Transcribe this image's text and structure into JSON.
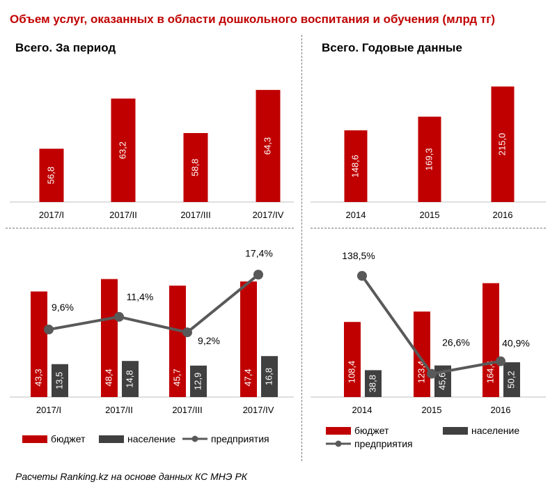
{
  "title": "Объем услуг, оказанных в области дошкольного воспитания и обучения (млрд тг)",
  "source": "Расчеты Ranking.kz на основе данных КС МНЭ РК",
  "colors": {
    "budget": "#c00000",
    "population": "#404040",
    "enterprises": "#595959",
    "title": "#c00000"
  },
  "legend": {
    "budget": "бюджет",
    "population": "население",
    "enterprises": "предприятия"
  },
  "chart_data": [
    {
      "id": "period-total",
      "type": "bar",
      "title": "Всего. За период",
      "categories": [
        "2017/I",
        "2017/II",
        "2017/III",
        "2017/IV"
      ],
      "values": [
        56.8,
        63.2,
        58.8,
        64.3
      ],
      "value_labels": [
        "56,8",
        "63,2",
        "58,8",
        "64,3"
      ],
      "ylim": [
        50,
        66
      ]
    },
    {
      "id": "annual-total",
      "type": "bar",
      "title": "Всего. Годовые данные",
      "categories": [
        "2014",
        "2015",
        "2016"
      ],
      "values": [
        148.6,
        169.3,
        215.0
      ],
      "value_labels": [
        "148,6",
        "169,3",
        "215,0"
      ],
      "ylim": [
        40,
        230
      ]
    },
    {
      "id": "period-breakdown",
      "type": "bar",
      "title": "",
      "categories": [
        "2017/I",
        "2017/II",
        "2017/III",
        "2017/IV"
      ],
      "series": [
        {
          "name": "бюджет",
          "kind": "bar",
          "values": [
            43.3,
            48.4,
            45.7,
            47.4
          ],
          "labels": [
            "43,3",
            "48,4",
            "45,7",
            "47,4"
          ]
        },
        {
          "name": "население",
          "kind": "bar",
          "values": [
            13.5,
            14.8,
            12.9,
            16.8
          ],
          "labels": [
            "13,5",
            "14,8",
            "12,9",
            "16,8"
          ]
        },
        {
          "name": "предприятия",
          "kind": "line",
          "unit": "%",
          "values": [
            9.6,
            11.4,
            9.2,
            17.4
          ],
          "labels": [
            "9,6%",
            "11,4%",
            "9,2%",
            "17,4%"
          ]
        }
      ],
      "bar_ylim": [
        0,
        52
      ],
      "line_ylim": [
        0,
        20
      ]
    },
    {
      "id": "annual-breakdown",
      "type": "bar",
      "title": "",
      "categories": [
        "2014",
        "2015",
        "2016"
      ],
      "series": [
        {
          "name": "бюджет",
          "kind": "bar",
          "values": [
            108.4,
            123.4,
            164.4
          ],
          "labels": [
            "108,4",
            "123,4",
            "164,4"
          ]
        },
        {
          "name": "население",
          "kind": "bar",
          "values": [
            38.8,
            45.6,
            50.2
          ],
          "labels": [
            "38,8",
            "45,6",
            "50,2"
          ]
        },
        {
          "name": "предприятия",
          "kind": "line",
          "unit": "%",
          "values": [
            138.5,
            26.6,
            40.9
          ],
          "labels": [
            "138,5%",
            "26,6%",
            "40,9%"
          ]
        }
      ],
      "bar_ylim": [
        0,
        180
      ],
      "line_ylim": [
        0,
        160
      ]
    }
  ]
}
